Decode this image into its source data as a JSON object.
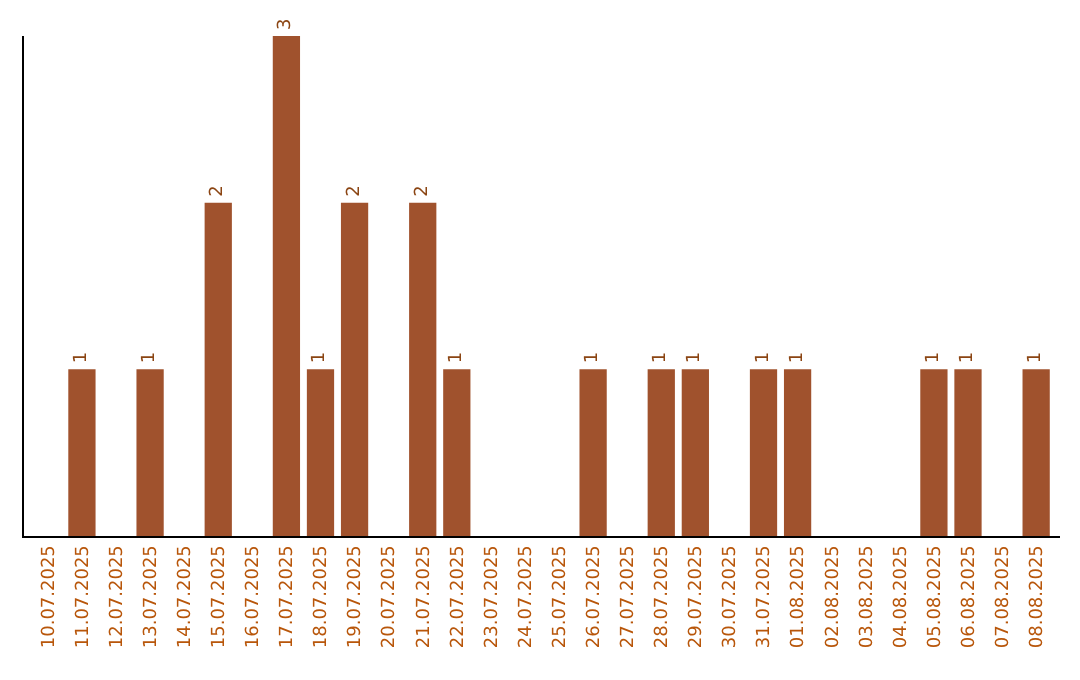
{
  "chart_data": {
    "type": "bar",
    "categories": [
      "10.07.2025",
      "11.07.2025",
      "12.07.2025",
      "13.07.2025",
      "14.07.2025",
      "15.07.2025",
      "16.07.2025",
      "17.07.2025",
      "18.07.2025",
      "19.07.2025",
      "20.07.2025",
      "21.07.2025",
      "22.07.2025",
      "23.07.2025",
      "24.07.2025",
      "25.07.2025",
      "26.07.2025",
      "27.07.2025",
      "28.07.2025",
      "29.07.2025",
      "30.07.2025",
      "31.07.2025",
      "01.08.2025",
      "02.08.2025",
      "03.08.2025",
      "04.08.2025",
      "05.08.2025",
      "06.08.2025",
      "07.08.2025",
      "08.08.2025"
    ],
    "values": [
      0,
      1,
      0,
      1,
      0,
      2,
      0,
      3,
      1,
      2,
      0,
      2,
      1,
      0,
      0,
      0,
      1,
      0,
      1,
      1,
      0,
      1,
      1,
      0,
      0,
      0,
      1,
      1,
      0,
      1
    ],
    "value_labels": [
      null,
      "1",
      null,
      "1",
      null,
      "2",
      null,
      "3",
      "1",
      "2",
      null,
      "2",
      "1",
      null,
      null,
      null,
      "1",
      null,
      "1",
      "1",
      null,
      "1",
      "1",
      null,
      null,
      null,
      "1",
      "1",
      null,
      "1"
    ],
    "color": "#a0522d",
    "ylim": [
      0,
      3.0
    ],
    "tick_labels": "x",
    "legend": false
  }
}
